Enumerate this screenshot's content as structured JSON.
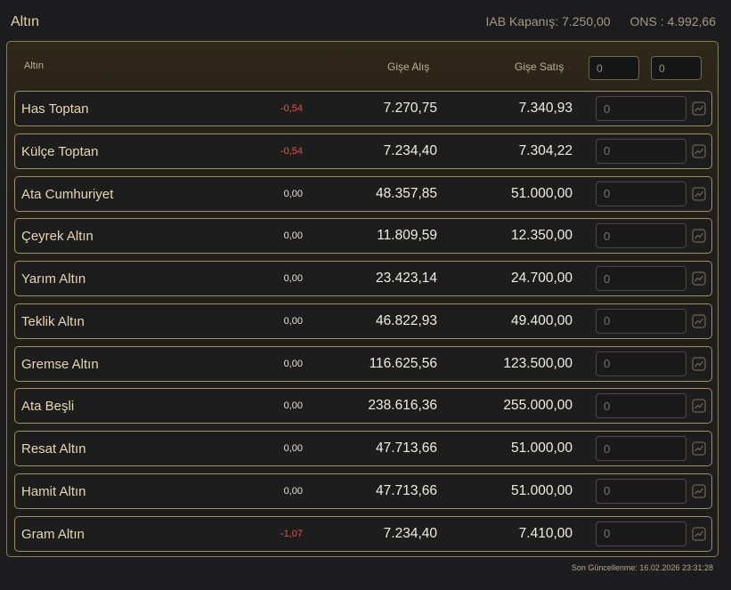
{
  "header": {
    "title": "Altın",
    "iab_label": "IAB Kapanış: 7.250,00",
    "ons_label": "ONS : 4.992,66"
  },
  "table": {
    "col_name": "Altın",
    "col_buy": "Gişe Alış",
    "col_sell": "Gişe Satış",
    "input_buy_value": "0",
    "input_sell_value": "0"
  },
  "rows": [
    {
      "name": "Has Toptan",
      "change": "-0,54",
      "buy": "7.270,75",
      "sell": "7.340,93",
      "input": "0"
    },
    {
      "name": "Külçe Toptan",
      "change": "-0,54",
      "buy": "7.234,40",
      "sell": "7.304,22",
      "input": "0"
    },
    {
      "name": "Ata Cumhuriyet",
      "change": "0,00",
      "buy": "48.357,85",
      "sell": "51.000,00",
      "input": "0"
    },
    {
      "name": "Çeyrek Altın",
      "change": "0,00",
      "buy": "11.809,59",
      "sell": "12.350,00",
      "input": "0"
    },
    {
      "name": "Yarım Altın",
      "change": "0,00",
      "buy": "23.423,14",
      "sell": "24.700,00",
      "input": "0"
    },
    {
      "name": "Teklik Altın",
      "change": "0,00",
      "buy": "46.822,93",
      "sell": "49.400,00",
      "input": "0"
    },
    {
      "name": "Gremse Altın",
      "change": "0,00",
      "buy": "116.625,56",
      "sell": "123.500,00",
      "input": "0"
    },
    {
      "name": "Ata Beşli",
      "change": "0,00",
      "buy": "238.616,36",
      "sell": "255.000,00",
      "input": "0"
    },
    {
      "name": "Resat Altın",
      "change": "0,00",
      "buy": "47.713,66",
      "sell": "51.000,00",
      "input": "0"
    },
    {
      "name": "Hamit Altın",
      "change": "0,00",
      "buy": "47.713,66",
      "sell": "51.000,00",
      "input": "0"
    },
    {
      "name": "Gram Altın",
      "change": "-1,07",
      "buy": "7.234,40",
      "sell": "7.410,00",
      "input": "0"
    }
  ],
  "icons": {
    "row_action": "line-chart-icon"
  },
  "colors": {
    "negative": "#e25555",
    "accent": "#a18d66"
  },
  "footer": {
    "last_updated": "Son Güncellenme: 16.02.2026 23:31:28"
  }
}
